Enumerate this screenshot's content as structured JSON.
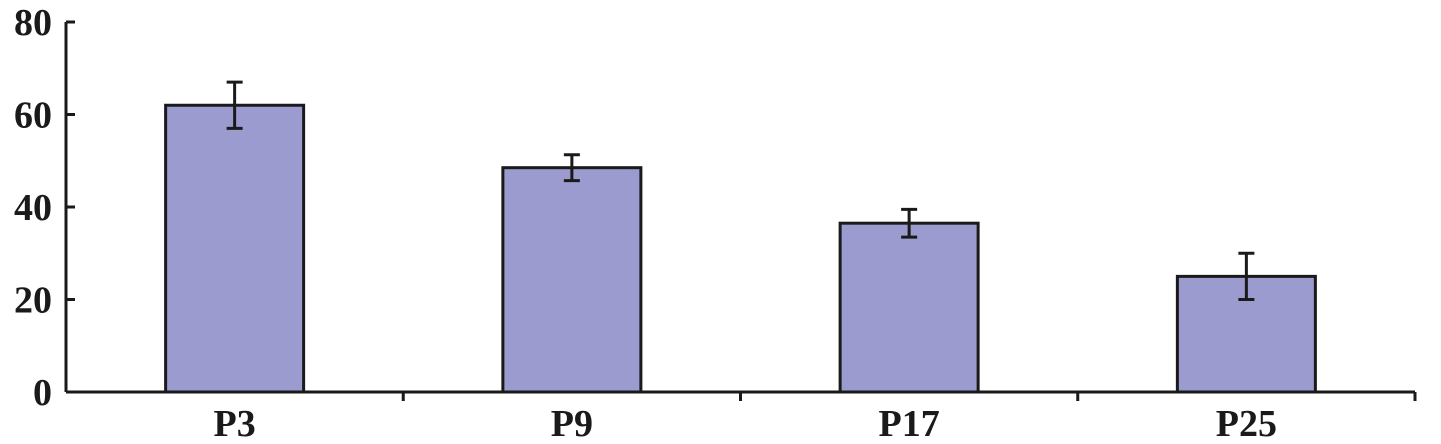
{
  "chart_data": {
    "type": "bar",
    "categories": [
      "P3",
      "P9",
      "P17",
      "P25"
    ],
    "values": [
      62,
      48.5,
      36.5,
      25
    ],
    "error": [
      5,
      2.8,
      3,
      5
    ],
    "ylim": [
      0,
      80
    ],
    "yticks": [
      0,
      20,
      40,
      60,
      80
    ],
    "ytick_labels": [
      "0",
      "20",
      "40",
      "60",
      "80"
    ],
    "title": "",
    "xlabel": "",
    "ylabel": "",
    "grid": false,
    "legend": "none",
    "bar_color": "#9b9bcf",
    "edge_color": "#1a1a1a"
  }
}
